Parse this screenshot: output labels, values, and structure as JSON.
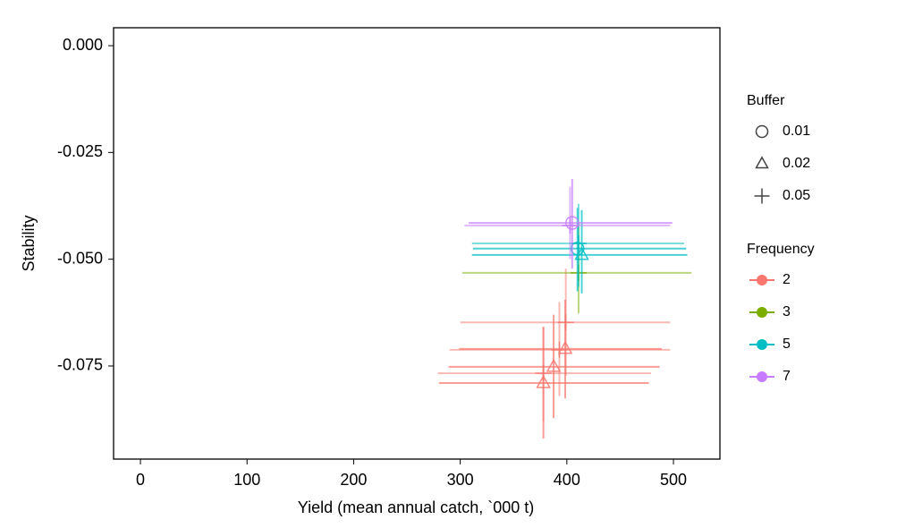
{
  "chart_data": {
    "type": "errorbar-scatter",
    "x_label": "Yield (mean annual catch, `000 t)",
    "y_label": "Stability",
    "xlim": [
      -25.2,
      543.6
    ],
    "ylim": [
      -0.0968,
      0.0042
    ],
    "xticks": [
      0,
      100,
      200,
      300,
      400,
      500
    ],
    "yticks": [
      {
        "value": 0,
        "label": "0.000"
      },
      -0.025,
      {
        "value": -0.05,
        "label": "-0.050"
      },
      -0.075
    ],
    "shape_legend": {
      "title": "Buffer",
      "items": [
        {
          "label": "0.01",
          "shape": "circle"
        },
        {
          "label": "0.02",
          "shape": "triangle"
        },
        {
          "label": "0.05",
          "shape": "plus"
        }
      ]
    },
    "color_legend_title": "Frequency",
    "series": [
      {
        "name": "2",
        "color": "#F8766D",
        "x": [
          378,
          387.6,
          398.5,
          399,
          393,
          378
        ],
        "values": [
          -0.079,
          -0.0752,
          -0.071,
          -0.0648,
          -0.0712,
          -0.0767
        ],
        "x_low": [
          280,
          289,
          299,
          300,
          290,
          279
        ],
        "x_high": [
          477,
          487,
          489,
          497,
          497,
          479
        ],
        "y_low": [
          -0.092,
          -0.0872,
          -0.0826,
          -0.0773,
          -0.082,
          -0.088
        ],
        "y_high": [
          -0.0658,
          -0.063,
          -0.0595,
          -0.0522,
          -0.06,
          -0.066
        ],
        "buffer": [
          "0.02",
          "0.02",
          "0.02",
          "0.05",
          "0.05",
          "0.05"
        ]
      },
      {
        "name": "3",
        "color": "#7CAE00",
        "x": [
          411
        ],
        "values": [
          -0.0532
        ],
        "x_low": [
          302
        ],
        "x_high": [
          517
        ],
        "y_low": [
          -0.0627
        ],
        "y_high": [
          -0.0417
        ],
        "buffer": [
          "0.05"
        ]
      },
      {
        "name": "5",
        "color": "#00BFC4",
        "x": [
          414,
          410,
          411
        ],
        "values": [
          -0.049,
          -0.0475,
          -0.0463
        ],
        "x_low": [
          311,
          312,
          311
        ],
        "x_high": [
          513,
          512,
          510
        ],
        "y_low": [
          -0.058,
          -0.0575,
          -0.0565
        ],
        "y_high": [
          -0.0385,
          -0.038,
          -0.037
        ],
        "buffer": [
          "0.02",
          "0.01",
          "0.05"
        ]
      },
      {
        "name": "7",
        "color": "#C77CFF",
        "x": [
          405,
          403
        ],
        "values": [
          -0.0415,
          -0.0421
        ],
        "x_low": [
          308,
          304
        ],
        "x_high": [
          499,
          497
        ],
        "y_low": [
          -0.0522,
          -0.05
        ],
        "y_high": [
          -0.0312,
          -0.033
        ],
        "buffer": [
          "0.01",
          "0.05"
        ]
      }
    ]
  }
}
